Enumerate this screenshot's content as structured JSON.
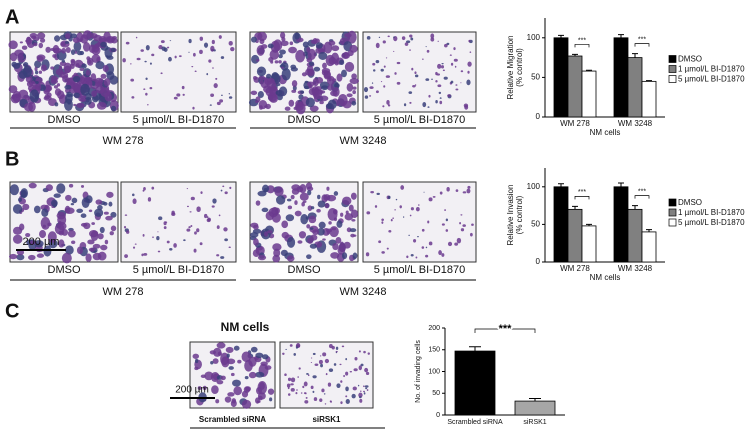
{
  "panels": [
    {
      "label": "A",
      "images": [
        "DMSO",
        "5 µmol/L BI-D1870",
        "DMSO",
        "5 µmol/L BI-D1870"
      ],
      "groups": [
        "WM 278",
        "WM 3248"
      ]
    },
    {
      "label": "B",
      "images": [
        "DMSO",
        "5 µmol/L BI-D1870",
        "DMSO",
        "5 µmol/L BI-D1870"
      ],
      "groups": [
        "WM 278",
        "WM 3248"
      ],
      "scale_bar": "200 µm"
    },
    {
      "label": "C",
      "title": "NM cells",
      "images": [
        "Scrambled siRNA",
        "siRSK1"
      ],
      "scale_bar": "200 µm"
    }
  ],
  "chart_data": [
    {
      "type": "bar",
      "y_label": [
        "Relative Migration",
        "(% control)"
      ],
      "x_label": "NM cells",
      "categories": [
        "WM 278",
        "WM 3248"
      ],
      "series": [
        {
          "name": "DMSO",
          "color": "#000000",
          "values": [
            100,
            100
          ],
          "errors": [
            3,
            4
          ]
        },
        {
          "name": "1 µmol/L BI-D1870",
          "color": "#808080",
          "values": [
            77,
            75
          ],
          "errors": [
            2,
            5
          ]
        },
        {
          "name": "5 µmol/L BI-D1870",
          "color": "#ffffff",
          "values": [
            58,
            45
          ],
          "errors": [
            1,
            1
          ]
        }
      ],
      "significance": [
        "***",
        "***"
      ],
      "ylim": [
        0,
        125
      ],
      "yticks": [
        0,
        50,
        100
      ]
    },
    {
      "type": "bar",
      "y_label": [
        "Relative Invasion",
        "(% control)"
      ],
      "x_label": "NM cells",
      "categories": [
        "WM 278",
        "WM 3248"
      ],
      "series": [
        {
          "name": "DMSO",
          "color": "#000000",
          "values": [
            100,
            100
          ],
          "errors": [
            4,
            5
          ]
        },
        {
          "name": "1 µmol/L BI-D1870",
          "color": "#808080",
          "values": [
            70,
            70
          ],
          "errors": [
            4,
            5
          ]
        },
        {
          "name": "5 µmol/L BI-D1870",
          "color": "#ffffff",
          "values": [
            48,
            40
          ],
          "errors": [
            2,
            3
          ]
        }
      ],
      "significance": [
        "***",
        "***"
      ],
      "ylim": [
        0,
        125
      ],
      "yticks": [
        0,
        50,
        100
      ]
    },
    {
      "type": "bar",
      "y_label": [
        "No. of invading cells"
      ],
      "categories": [
        "Scrambled siRNA",
        "siRSK1"
      ],
      "series": [
        {
          "colors": [
            "#000000",
            "#a6a6a6"
          ],
          "values": [
            147,
            32
          ],
          "errors": [
            10,
            6
          ]
        }
      ],
      "significance": "***",
      "ylim": [
        0,
        200
      ],
      "yticks": [
        0,
        50,
        100,
        150,
        200
      ]
    }
  ]
}
